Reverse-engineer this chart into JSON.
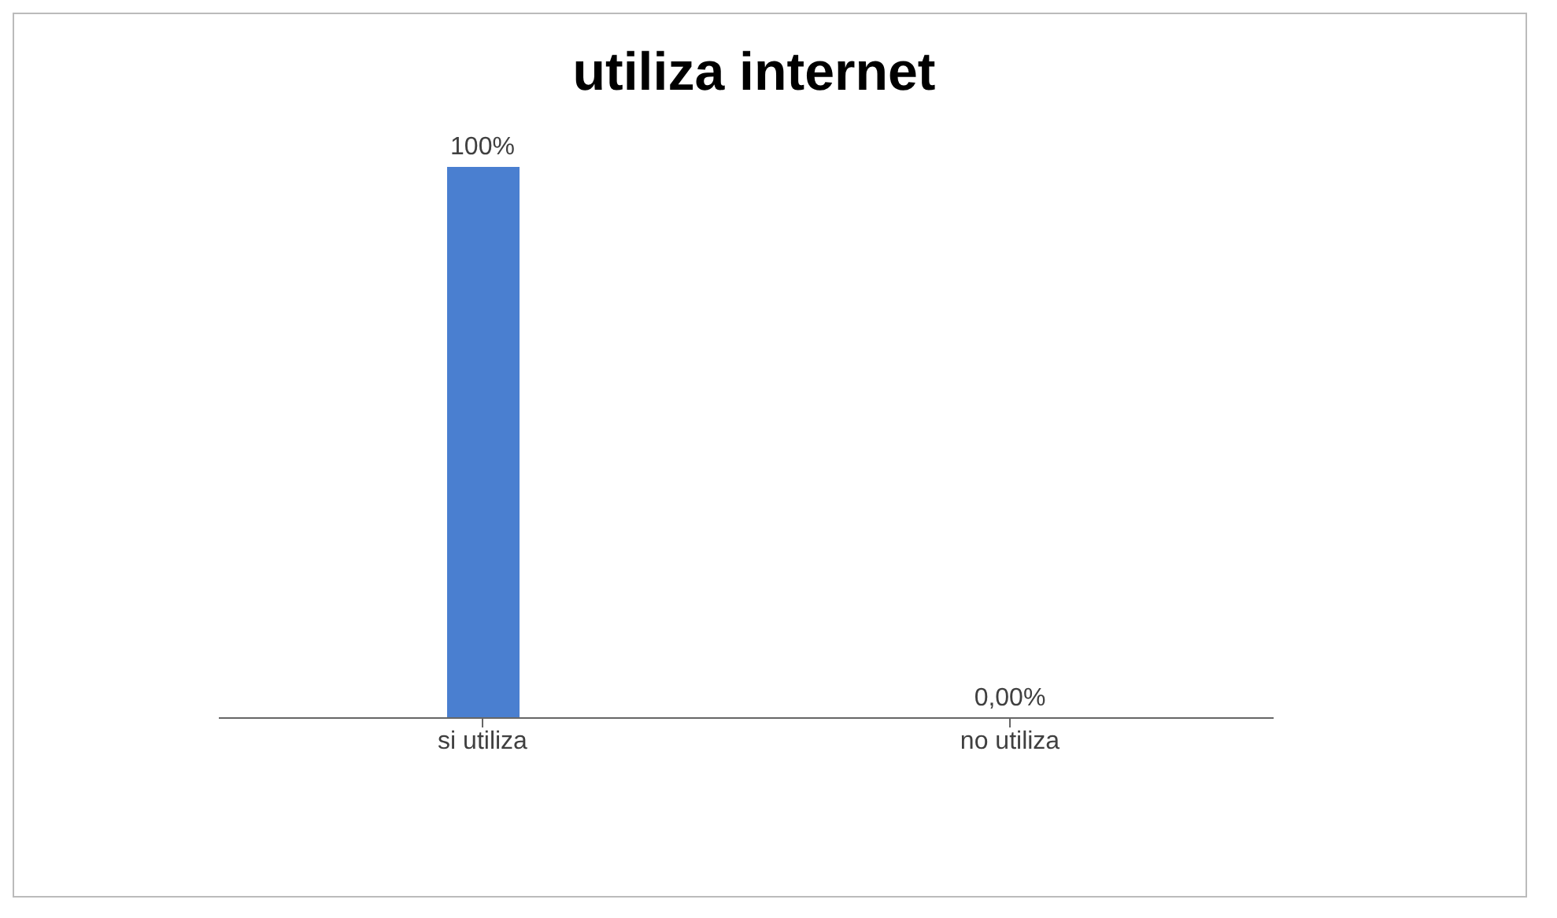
{
  "chart_data": {
    "type": "bar",
    "title": "utiliza internet",
    "categories": [
      "si utiliza",
      "no utiliza"
    ],
    "values": [
      100,
      0
    ],
    "colors": [
      "#4a7fd0",
      "#c0504d"
    ],
    "value_labels": [
      "100%",
      "0,00%"
    ],
    "grid": false,
    "legend": false
  }
}
